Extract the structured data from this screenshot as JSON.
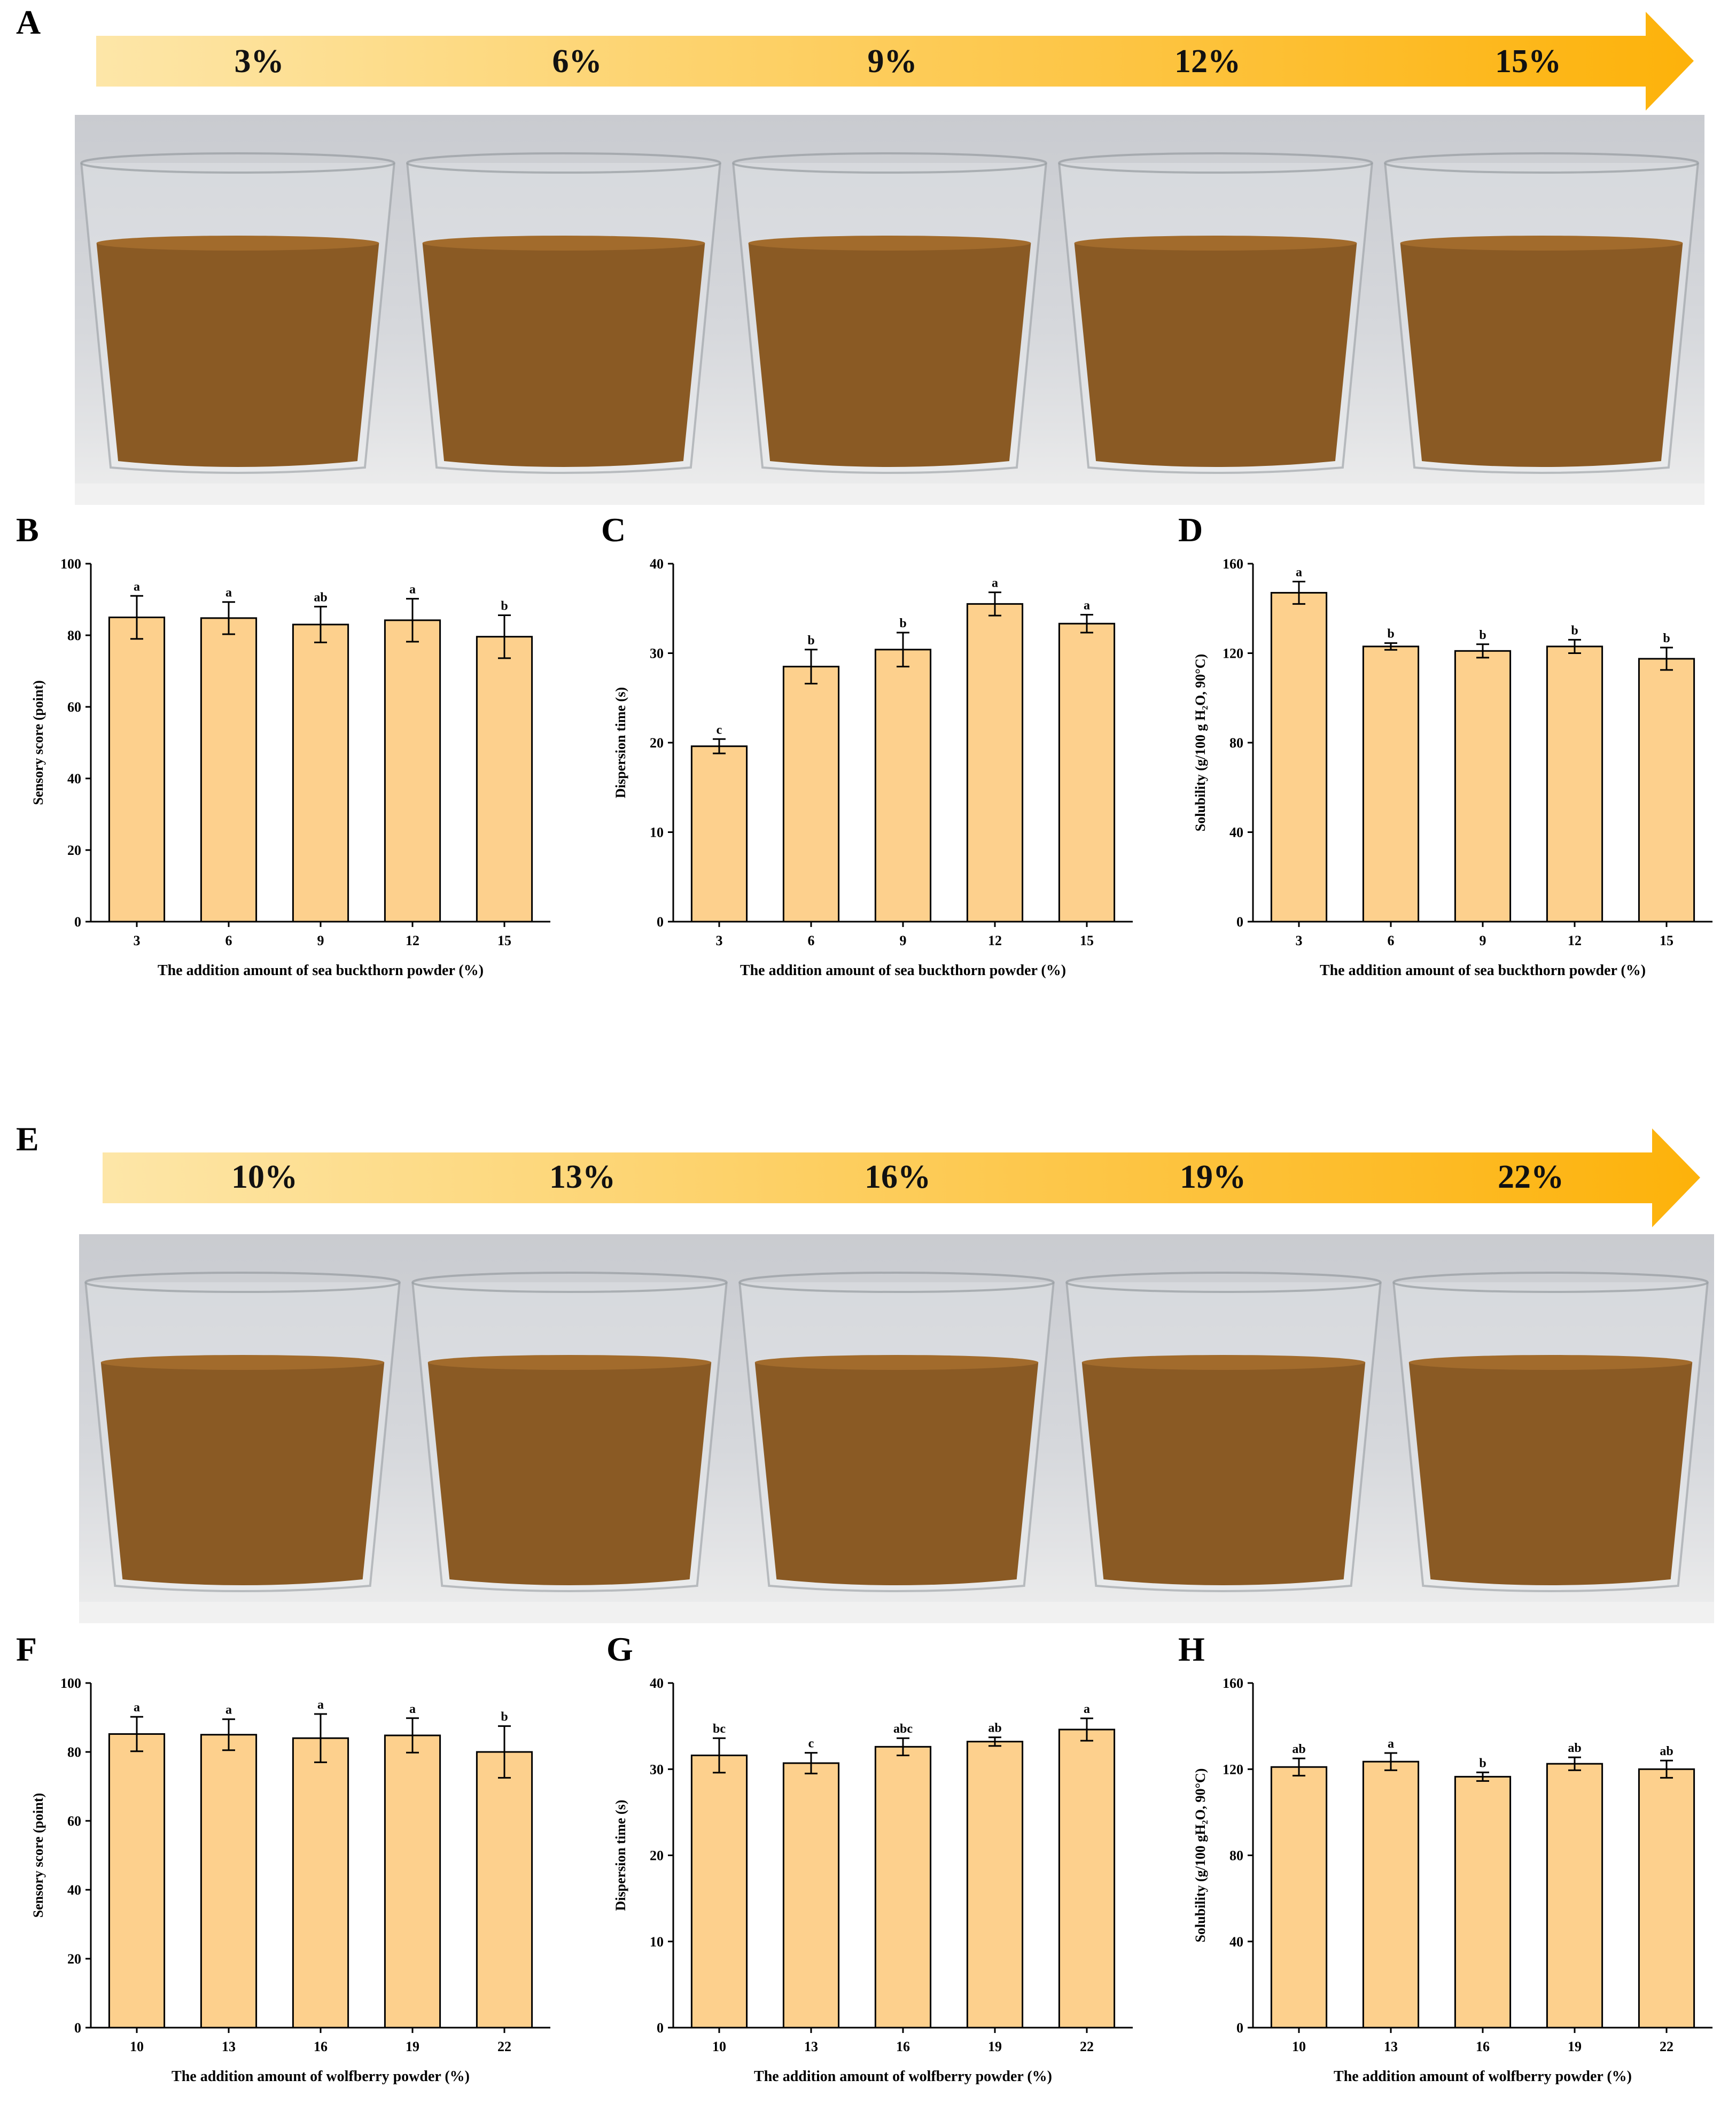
{
  "panels": {
    "A": "A",
    "B": "B",
    "C": "C",
    "D": "D",
    "E": "E",
    "F": "F",
    "G": "G",
    "H": "H"
  },
  "arrow_top": {
    "labels": [
      "3%",
      "6%",
      "9%",
      "12%",
      "15%"
    ],
    "color_start": "#fde6a8",
    "color_end": "#fdb20a"
  },
  "arrow_bottom": {
    "labels": [
      "10%",
      "13%",
      "16%",
      "19%",
      "22%"
    ],
    "color_start": "#fde6a8",
    "color_end": "#fdb20a"
  },
  "colors": {
    "bar_fill": "#fdd08d",
    "bar_stroke": "#000000",
    "liquid": "#8a5a24"
  },
  "chart_data": [
    {
      "id": "B",
      "type": "bar",
      "categories": [
        "3",
        "6",
        "9",
        "12",
        "15"
      ],
      "values": [
        85,
        84.8,
        83,
        84.2,
        79.6
      ],
      "errors": [
        6,
        4.5,
        5,
        6,
        6
      ],
      "letters": [
        "a",
        "a",
        "ab",
        "a",
        "b"
      ],
      "xlabel": "The addition amount of sea buckthorn powder (%)",
      "ylabel": "Sensory score (point)",
      "ylim": [
        0,
        100
      ],
      "ticks": [
        0,
        20,
        40,
        60,
        80,
        100
      ]
    },
    {
      "id": "C",
      "type": "bar",
      "categories": [
        "3",
        "6",
        "9",
        "12",
        "15"
      ],
      "values": [
        19.6,
        28.5,
        30.4,
        35.5,
        33.3
      ],
      "errors": [
        0.8,
        1.9,
        1.9,
        1.3,
        1.0
      ],
      "letters": [
        "c",
        "b",
        "b",
        "a",
        "a"
      ],
      "xlabel": "The addition amount of sea buckthorn powder (%)",
      "ylabel": "Dispersion time (s)",
      "ylim": [
        0,
        40
      ],
      "ticks": [
        0,
        10,
        20,
        30,
        40
      ]
    },
    {
      "id": "D",
      "type": "bar",
      "categories": [
        "3",
        "6",
        "9",
        "12",
        "15"
      ],
      "values": [
        147,
        123,
        121,
        123,
        117.5
      ],
      "errors": [
        5,
        1.5,
        3,
        3,
        5
      ],
      "letters": [
        "a",
        "b",
        "b",
        "b",
        "b"
      ],
      "xlabel": "The addition amount of sea buckthorn powder (%)",
      "ylabel": "Solubility (g/100 g H₂O, 90°C)",
      "ylim": [
        0,
        160
      ],
      "ticks": [
        0,
        40,
        80,
        120,
        160
      ]
    },
    {
      "id": "F",
      "type": "bar",
      "categories": [
        "10",
        "13",
        "16",
        "19",
        "22"
      ],
      "values": [
        85.2,
        85,
        84,
        84.8,
        80
      ],
      "errors": [
        5,
        4.5,
        7,
        5,
        7.5
      ],
      "letters": [
        "a",
        "a",
        "a",
        "a",
        "b"
      ],
      "xlabel": "The addition amount of wolfberry powder (%)",
      "ylabel": "Sensory score (point)",
      "ylim": [
        0,
        100
      ],
      "ticks": [
        0,
        20,
        40,
        60,
        80,
        100
      ]
    },
    {
      "id": "G",
      "type": "bar",
      "categories": [
        "10",
        "13",
        "16",
        "19",
        "22"
      ],
      "values": [
        31.6,
        30.7,
        32.6,
        33.2,
        34.6
      ],
      "errors": [
        2,
        1.2,
        1,
        0.5,
        1.3
      ],
      "letters": [
        "bc",
        "c",
        "abc",
        "ab",
        "a"
      ],
      "xlabel": "The addition amount of wolfberry powder (%)",
      "ylabel": "Dispersion time (s)",
      "ylim": [
        0,
        40
      ],
      "ticks": [
        0,
        10,
        20,
        30,
        40
      ]
    },
    {
      "id": "H",
      "type": "bar",
      "categories": [
        "10",
        "13",
        "16",
        "19",
        "22"
      ],
      "values": [
        121,
        123.5,
        116.5,
        122.5,
        120
      ],
      "errors": [
        4,
        4,
        2,
        3,
        4
      ],
      "letters": [
        "ab",
        "a",
        "b",
        "ab",
        "ab"
      ],
      "xlabel": "The addition amount of wolfberry powder (%)",
      "ylabel": "Solubility (g/100 gH₂O, 90°C)",
      "ylim": [
        0,
        160
      ],
      "ticks": [
        0,
        40,
        80,
        120,
        160
      ]
    }
  ]
}
